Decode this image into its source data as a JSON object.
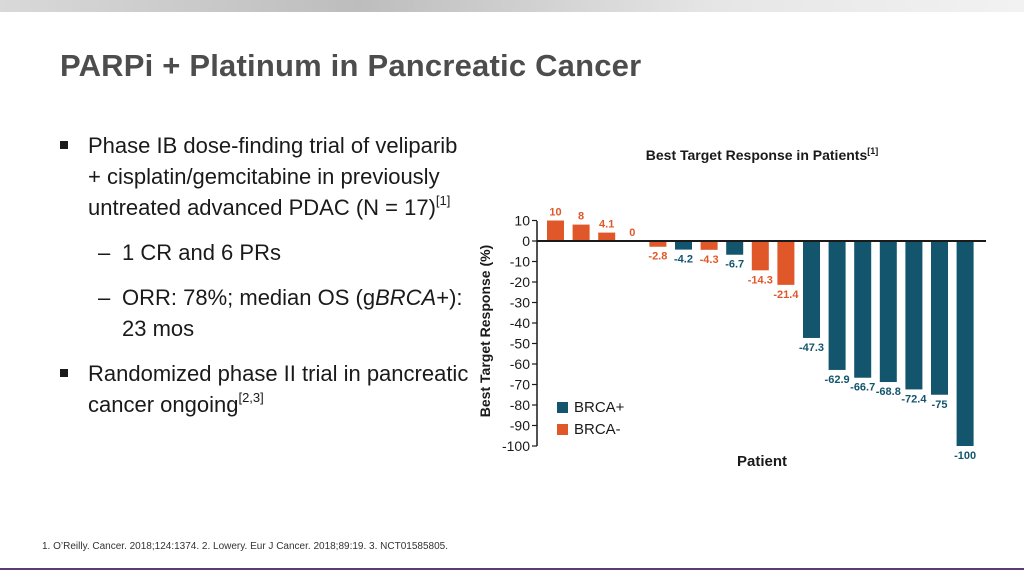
{
  "slide": {
    "title": "PARPi + Platinum in Pancreatic Cancer",
    "bullet1": {
      "text": "Phase IB dose-finding trial of veliparib + cisplatin/gemcitabine in previously untreated advanced PDAC (N = 17)",
      "ref": "[1]",
      "sub1": "1 CR and 6 PRs",
      "sub2_a": "ORR: 78%; median OS (g",
      "sub2_italic": "BRCA",
      "sub2_b": "+): 23 mos"
    },
    "bullet2": {
      "text": "Randomized phase II trial in pancreatic cancer ongoing",
      "ref": "[2,3]"
    },
    "footnote": "1. O’Reilly. Cancer. 2018;124:1374. 2. Lowery. Eur J Cancer. 2018;89:19. 3. NCT01585805."
  },
  "colors": {
    "brca_pos": "#14556e",
    "brca_neg": "#e0582a",
    "text": "#1a1a1a",
    "accent_line": "#5b3a78"
  },
  "chart_data": {
    "type": "bar",
    "title": "Best Target Response in Patients",
    "title_ref": "[1]",
    "xlabel": "Patient",
    "ylabel": "Best Target Response (%)",
    "ylim": [
      -100,
      10
    ],
    "yticks": [
      10,
      0,
      -10,
      -20,
      -30,
      -40,
      -50,
      -60,
      -70,
      -80,
      -90,
      -100
    ],
    "series": [
      {
        "name": "BRCA+",
        "key": "pos"
      },
      {
        "name": "BRCA-",
        "key": "neg"
      }
    ],
    "values": [
      10,
      8,
      4.1,
      0,
      -2.8,
      -4.2,
      -4.3,
      -6.7,
      -14.3,
      -21.4,
      -47.3,
      -62.9,
      -66.7,
      -68.8,
      -72.4,
      -75,
      -100
    ],
    "labels": [
      "10",
      "8",
      "4.1",
      "0",
      "-2.8",
      "-4.2",
      "-4.3",
      "-6.7",
      "-14.3",
      "-21.4",
      "-47.3",
      "-62.9",
      "-66.7",
      "-68.8",
      "-72.4",
      "-75",
      "-100"
    ],
    "group": [
      "neg",
      "neg",
      "neg",
      "neg",
      "neg",
      "pos",
      "neg",
      "pos",
      "neg",
      "neg",
      "pos",
      "pos",
      "pos",
      "pos",
      "pos",
      "pos",
      "pos"
    ]
  }
}
